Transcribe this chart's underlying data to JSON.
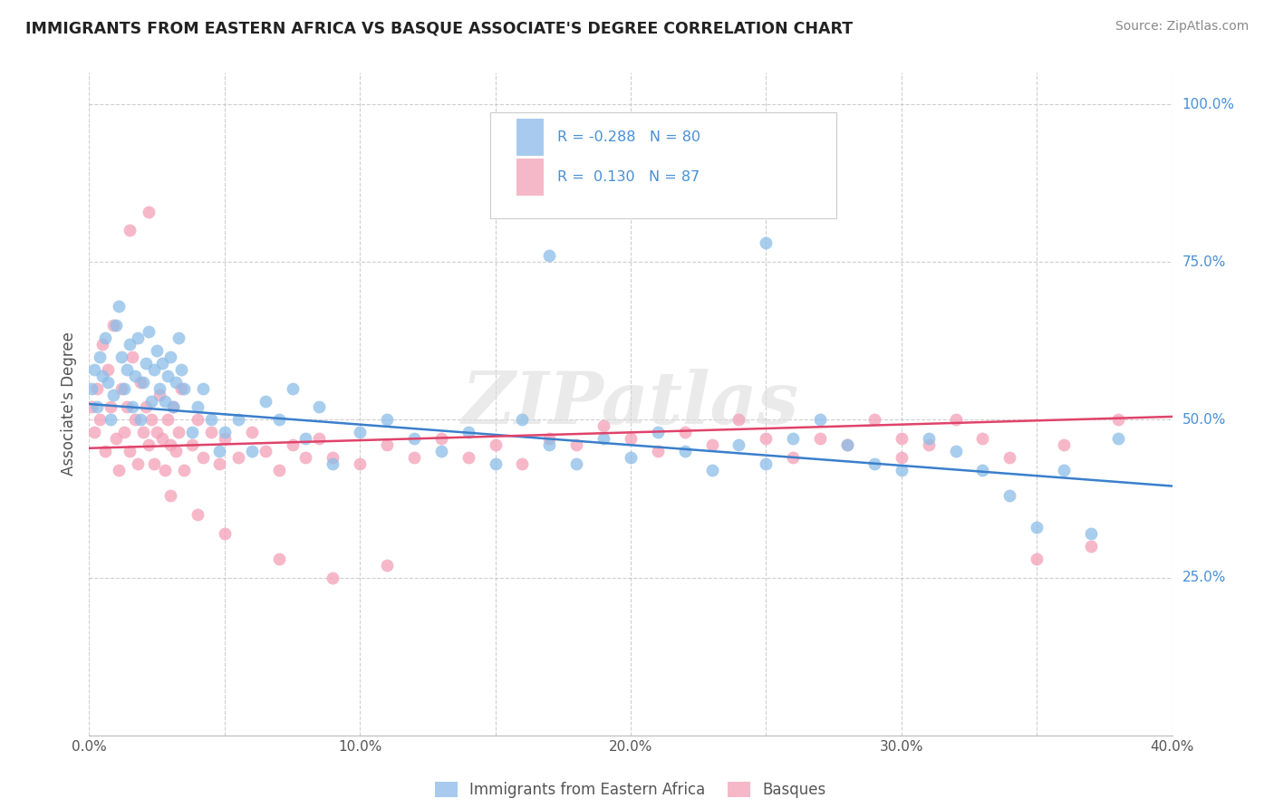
{
  "title": "IMMIGRANTS FROM EASTERN AFRICA VS BASQUE ASSOCIATE'S DEGREE CORRELATION CHART",
  "source": "Source: ZipAtlas.com",
  "ylabel": "Associate's Degree",
  "xmin": 0.0,
  "xmax": 0.4,
  "ymin": 0.0,
  "ymax": 1.05,
  "xtick_labels": [
    "0.0%",
    "",
    "10.0%",
    "",
    "20.0%",
    "",
    "30.0%",
    "",
    "40.0%"
  ],
  "xtick_values": [
    0.0,
    0.05,
    0.1,
    0.15,
    0.2,
    0.25,
    0.3,
    0.35,
    0.4
  ],
  "ytick_labels": [
    "25.0%",
    "50.0%",
    "75.0%",
    "100.0%"
  ],
  "ytick_values": [
    0.25,
    0.5,
    0.75,
    1.0
  ],
  "blue_color": "#8BBDE8",
  "pink_color": "#F4A0B8",
  "blue_line_color": "#3A7FCC",
  "pink_line_color": "#E0436A",
  "legend_blue_fill": "#A8CAEE",
  "legend_pink_fill": "#F4B8C8",
  "R_blue": -0.288,
  "N_blue": 80,
  "R_pink": 0.13,
  "N_pink": 87,
  "legend_label_blue": "Immigrants from Eastern Africa",
  "legend_label_pink": "Basques",
  "blue_line_y0": 0.525,
  "blue_line_y1": 0.395,
  "pink_line_y0": 0.455,
  "pink_line_y1": 0.505,
  "blue_scatter_x": [
    0.001,
    0.002,
    0.003,
    0.004,
    0.005,
    0.006,
    0.007,
    0.008,
    0.009,
    0.01,
    0.011,
    0.012,
    0.013,
    0.014,
    0.015,
    0.016,
    0.017,
    0.018,
    0.019,
    0.02,
    0.021,
    0.022,
    0.023,
    0.024,
    0.025,
    0.026,
    0.027,
    0.028,
    0.029,
    0.03,
    0.031,
    0.032,
    0.033,
    0.034,
    0.035,
    0.038,
    0.04,
    0.042,
    0.045,
    0.048,
    0.05,
    0.055,
    0.06,
    0.065,
    0.07,
    0.075,
    0.08,
    0.085,
    0.09,
    0.1,
    0.11,
    0.12,
    0.13,
    0.14,
    0.15,
    0.16,
    0.17,
    0.18,
    0.19,
    0.2,
    0.21,
    0.22,
    0.23,
    0.24,
    0.25,
    0.26,
    0.27,
    0.28,
    0.29,
    0.3,
    0.31,
    0.32,
    0.33,
    0.34,
    0.35,
    0.36,
    0.37,
    0.38,
    0.17,
    0.25
  ],
  "blue_scatter_y": [
    0.55,
    0.58,
    0.52,
    0.6,
    0.57,
    0.63,
    0.56,
    0.5,
    0.54,
    0.65,
    0.68,
    0.6,
    0.55,
    0.58,
    0.62,
    0.52,
    0.57,
    0.63,
    0.5,
    0.56,
    0.59,
    0.64,
    0.53,
    0.58,
    0.61,
    0.55,
    0.59,
    0.53,
    0.57,
    0.6,
    0.52,
    0.56,
    0.63,
    0.58,
    0.55,
    0.48,
    0.52,
    0.55,
    0.5,
    0.45,
    0.48,
    0.5,
    0.45,
    0.53,
    0.5,
    0.55,
    0.47,
    0.52,
    0.43,
    0.48,
    0.5,
    0.47,
    0.45,
    0.48,
    0.43,
    0.5,
    0.46,
    0.43,
    0.47,
    0.44,
    0.48,
    0.45,
    0.42,
    0.46,
    0.43,
    0.47,
    0.5,
    0.46,
    0.43,
    0.42,
    0.47,
    0.45,
    0.42,
    0.38,
    0.33,
    0.42,
    0.32,
    0.47,
    0.76,
    0.78
  ],
  "pink_scatter_x": [
    0.001,
    0.002,
    0.003,
    0.004,
    0.005,
    0.006,
    0.007,
    0.008,
    0.009,
    0.01,
    0.011,
    0.012,
    0.013,
    0.014,
    0.015,
    0.016,
    0.017,
    0.018,
    0.019,
    0.02,
    0.021,
    0.022,
    0.023,
    0.024,
    0.025,
    0.026,
    0.027,
    0.028,
    0.029,
    0.03,
    0.031,
    0.032,
    0.033,
    0.034,
    0.035,
    0.038,
    0.04,
    0.042,
    0.045,
    0.048,
    0.05,
    0.055,
    0.06,
    0.065,
    0.07,
    0.075,
    0.08,
    0.085,
    0.09,
    0.1,
    0.11,
    0.12,
    0.13,
    0.14,
    0.15,
    0.16,
    0.17,
    0.18,
    0.19,
    0.2,
    0.21,
    0.22,
    0.23,
    0.24,
    0.25,
    0.26,
    0.27,
    0.28,
    0.29,
    0.3,
    0.31,
    0.32,
    0.33,
    0.34,
    0.35,
    0.36,
    0.37,
    0.38,
    0.015,
    0.022,
    0.03,
    0.04,
    0.05,
    0.07,
    0.09,
    0.11,
    0.3
  ],
  "pink_scatter_y": [
    0.52,
    0.48,
    0.55,
    0.5,
    0.62,
    0.45,
    0.58,
    0.52,
    0.65,
    0.47,
    0.42,
    0.55,
    0.48,
    0.52,
    0.45,
    0.6,
    0.5,
    0.43,
    0.56,
    0.48,
    0.52,
    0.46,
    0.5,
    0.43,
    0.48,
    0.54,
    0.47,
    0.42,
    0.5,
    0.46,
    0.52,
    0.45,
    0.48,
    0.55,
    0.42,
    0.46,
    0.5,
    0.44,
    0.48,
    0.43,
    0.47,
    0.44,
    0.48,
    0.45,
    0.42,
    0.46,
    0.44,
    0.47,
    0.44,
    0.43,
    0.46,
    0.44,
    0.47,
    0.44,
    0.46,
    0.43,
    0.47,
    0.46,
    0.49,
    0.47,
    0.45,
    0.48,
    0.46,
    0.5,
    0.47,
    0.44,
    0.47,
    0.46,
    0.5,
    0.47,
    0.46,
    0.5,
    0.47,
    0.44,
    0.28,
    0.46,
    0.3,
    0.5,
    0.8,
    0.83,
    0.38,
    0.35,
    0.32,
    0.28,
    0.25,
    0.27,
    0.44
  ]
}
